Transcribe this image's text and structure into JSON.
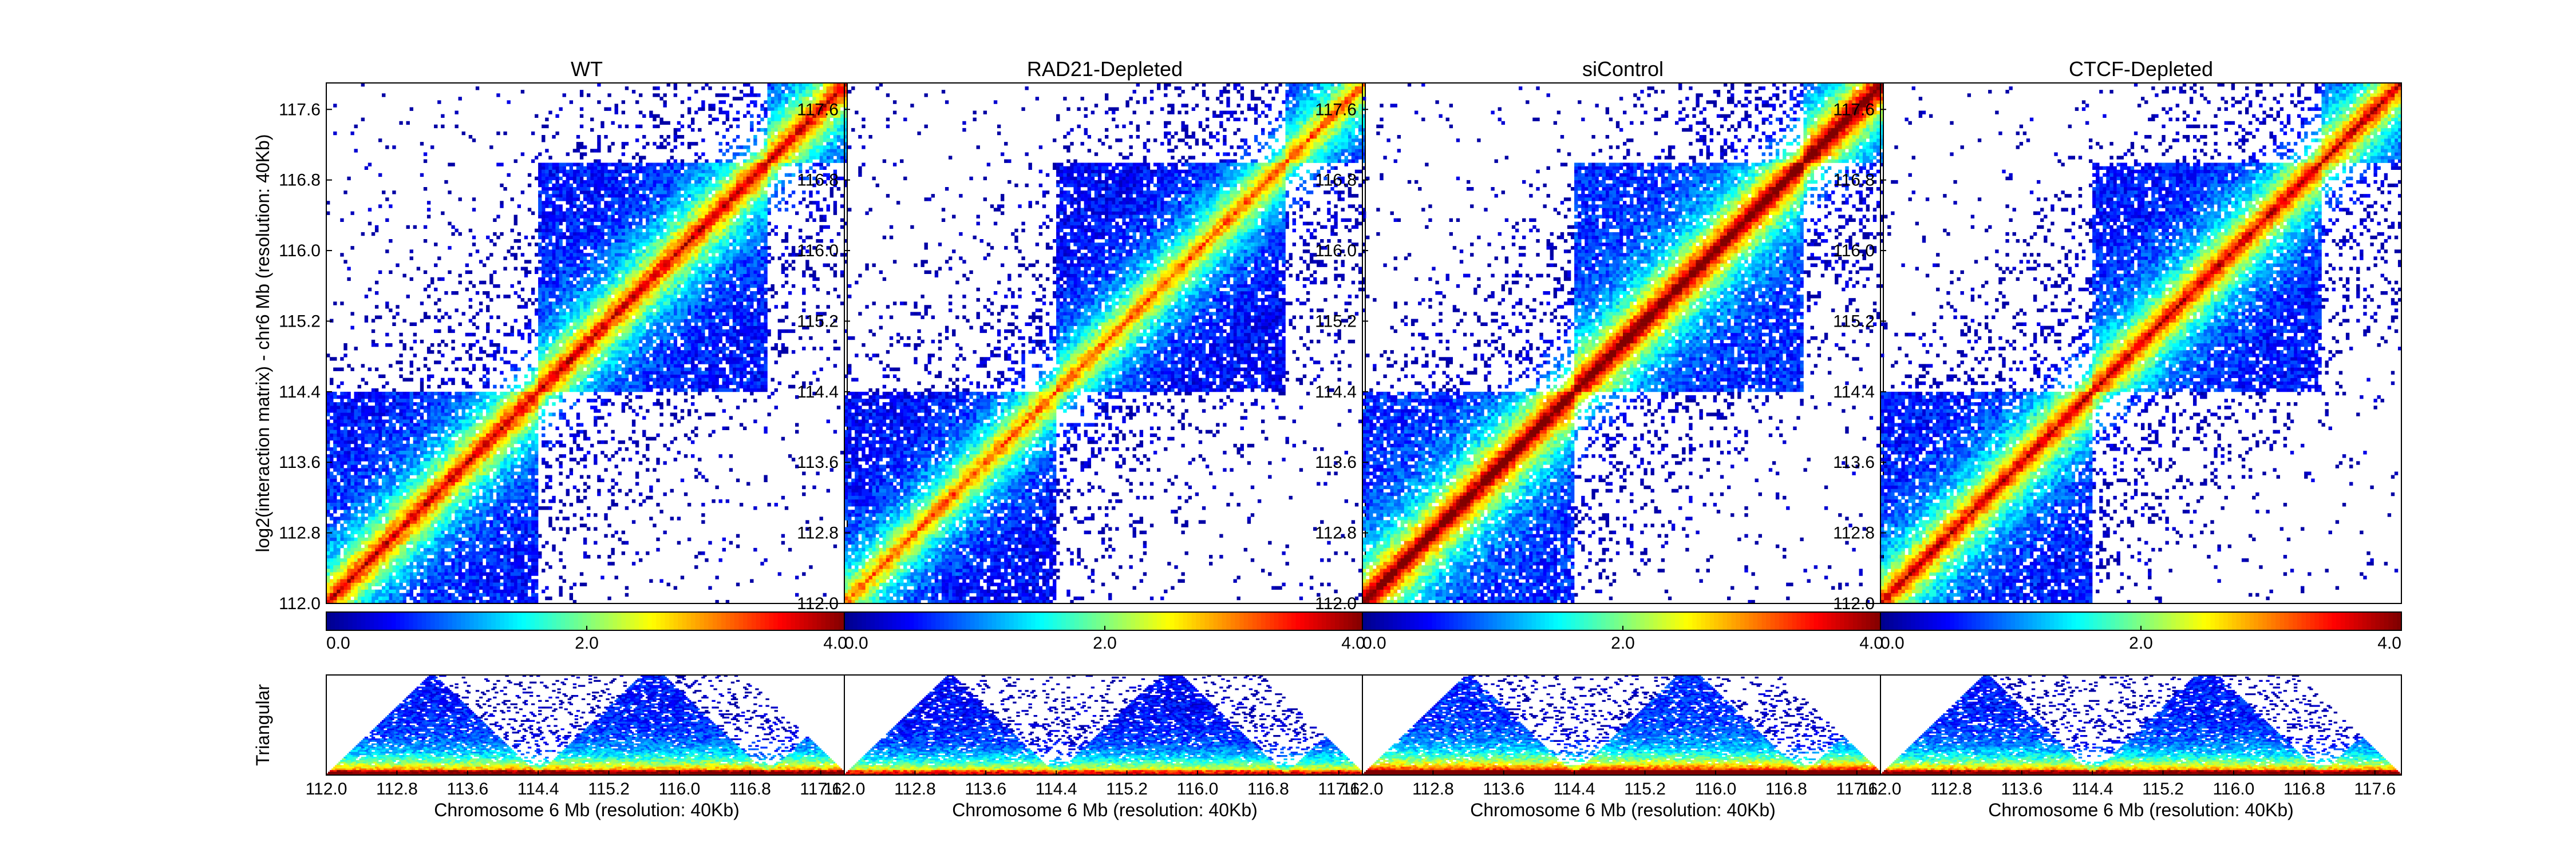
{
  "figure": {
    "ylabel": "log2(interaction matrix) - chr6 Mb (resolution: 40Kb)",
    "triangular_label": "Triangular",
    "xlabel": "Chromosome 6 Mb (resolution: 40Kb)",
    "colorbar_ticks": [
      "0.0",
      "2.0",
      "4.0"
    ]
  },
  "colors": {
    "colormap": [
      "#00008f",
      "#0000ff",
      "#0080ff",
      "#00ffff",
      "#80ff80",
      "#ffff00",
      "#ff8000",
      "#ff0000",
      "#800000"
    ],
    "frame": "#000000",
    "background": "#ffffff"
  },
  "chart_data": [
    {
      "type": "heatmap",
      "title": "WT",
      "ylabel": "log2(interaction matrix) - chr6 Mb (resolution: 40Kb)",
      "xlabel": "Chromosome 6 Mb (resolution: 40Kb)",
      "axis_range_mb": [
        112.0,
        117.9
      ],
      "ticks": [
        "112.0",
        "112.8",
        "113.6",
        "114.4",
        "115.2",
        "116.0",
        "116.8",
        "117.6"
      ],
      "color_range": [
        0.0,
        4.0
      ],
      "tads_mb": [
        [
          112.0,
          114.4
        ],
        [
          114.4,
          117.0
        ],
        [
          117.0,
          117.9
        ]
      ],
      "signal": 1.0
    },
    {
      "type": "heatmap",
      "title": "RAD21-Depleted",
      "xlabel": "Chromosome 6 Mb (resolution: 40Kb)",
      "axis_range_mb": [
        112.0,
        117.9
      ],
      "ticks": [
        "112.0",
        "112.8",
        "113.6",
        "114.4",
        "115.2",
        "116.0",
        "116.8",
        "117.6"
      ],
      "color_range": [
        0.0,
        4.0
      ],
      "tads_mb": [
        [
          112.0,
          114.4
        ],
        [
          114.4,
          117.0
        ],
        [
          117.0,
          117.9
        ]
      ],
      "signal": 0.85
    },
    {
      "type": "heatmap",
      "title": "siControl",
      "xlabel": "Chromosome 6 Mb (resolution: 40Kb)",
      "axis_range_mb": [
        112.0,
        117.9
      ],
      "ticks": [
        "112.0",
        "112.8",
        "113.6",
        "114.4",
        "115.2",
        "116.0",
        "116.8",
        "117.6"
      ],
      "color_range": [
        0.0,
        4.0
      ],
      "tads_mb": [
        [
          112.0,
          114.4
        ],
        [
          114.4,
          117.0
        ],
        [
          117.0,
          117.9
        ]
      ],
      "signal": 1.15
    },
    {
      "type": "heatmap",
      "title": "CTCF-Depleted",
      "xlabel": "Chromosome 6 Mb (resolution: 40Kb)",
      "axis_range_mb": [
        112.0,
        117.9
      ],
      "ticks": [
        "112.0",
        "112.8",
        "113.6",
        "114.4",
        "115.2",
        "116.0",
        "116.8",
        "117.6"
      ],
      "color_range": [
        0.0,
        4.0
      ],
      "tads_mb": [
        [
          112.0,
          114.4
        ],
        [
          114.4,
          117.0
        ],
        [
          117.0,
          117.9
        ]
      ],
      "signal": 1.0
    }
  ]
}
